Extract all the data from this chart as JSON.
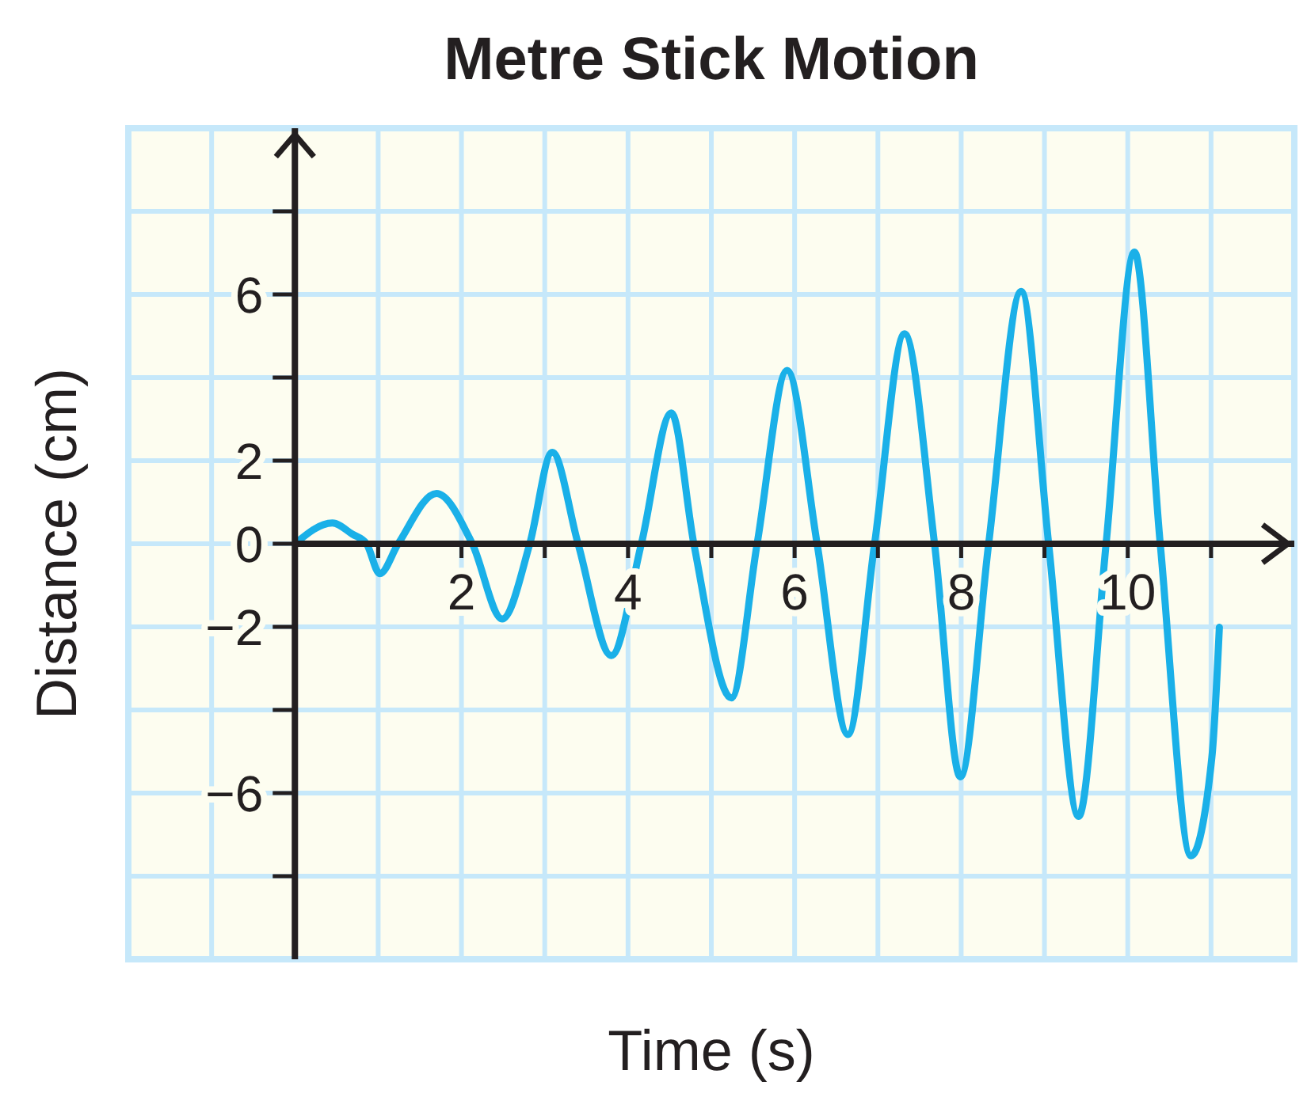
{
  "chart_data": {
    "type": "line",
    "title": "Metre Stick Motion",
    "xlabel": "Time (s)",
    "ylabel": "Distance (cm)",
    "xlim": [
      -2,
      12
    ],
    "ylim": [
      -10,
      10
    ],
    "xticks": [
      {
        "value": 1,
        "label": null
      },
      2,
      {
        "value": 3,
        "label": null
      },
      4,
      {
        "value": 5,
        "label": null
      },
      6,
      {
        "value": 7,
        "label": null
      },
      8,
      {
        "value": 9,
        "label": null
      },
      10,
      {
        "value": 11,
        "label": null
      }
    ],
    "yticks": [
      {
        "value": -8,
        "label": null
      },
      {
        "value": -6,
        "label": "−6"
      },
      {
        "value": -4,
        "label": null
      },
      {
        "value": -2,
        "label": "−2"
      },
      0,
      2,
      {
        "value": 4,
        "label": null
      },
      6,
      {
        "value": 8,
        "label": null
      }
    ],
    "grid": true,
    "line_style": "solid",
    "series": [
      {
        "color": "#1ab0e8",
        "x": [
          0,
          0.45,
          0.69,
          0.86,
          1.02,
          1.24,
          1.7,
          2.13,
          2.49,
          2.82,
          3.09,
          3.4,
          3.8,
          4.16,
          4.52,
          4.79,
          5.24,
          5.55,
          5.91,
          6.27,
          6.64,
          6.96,
          7.32,
          7.68,
          7.99,
          8.33,
          8.72,
          9.05,
          9.41,
          9.74,
          10.08,
          10.39,
          10.76,
          11.01,
          11.1
        ],
        "values": [
          0,
          0.5,
          0.23,
          0,
          -0.72,
          0,
          1.21,
          0,
          -1.81,
          0,
          2.2,
          0,
          -2.69,
          0,
          3.15,
          0,
          -3.71,
          0,
          4.17,
          0,
          -4.59,
          0,
          5.05,
          0,
          -5.61,
          0,
          6.07,
          0,
          -6.56,
          0,
          7.02,
          0,
          -7.51,
          -5.14,
          -2.01
        ]
      }
    ]
  }
}
